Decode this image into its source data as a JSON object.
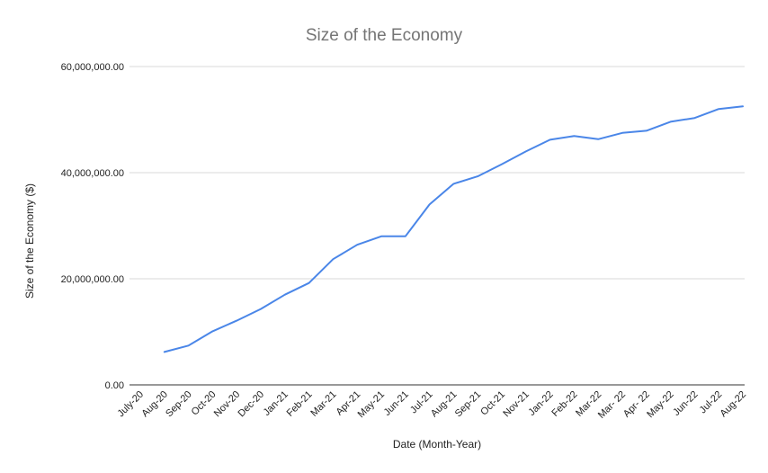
{
  "chart_data": {
    "type": "line",
    "title": "Size of the Economy",
    "xlabel": "Date (Month-Year)",
    "ylabel": "Size of the Economy ($)",
    "ylim": [
      0,
      60000000
    ],
    "yticks": [
      0,
      20000000,
      40000000,
      60000000
    ],
    "ytick_labels": [
      "0.00",
      "20,000,000.00",
      "40,000,000.00",
      "60,000,000.00"
    ],
    "categories": [
      "July-20",
      "Aug-20",
      "Sep-20",
      "Oct-20",
      "Nov-20",
      "Dec-20",
      "Jan-21",
      "Feb-21",
      "Mar-21",
      "Apr-21",
      "May-21",
      "Jun-21",
      "Jul-21",
      "Aug-21",
      "Sep-21",
      "Oct-21",
      "Nov-21",
      "Jan-22",
      "Feb-22",
      "Mar-22",
      "Mar- 22",
      "Apr- 22",
      "May-22",
      "Jun-22",
      "Jul-22",
      "Aug-22"
    ],
    "series": [
      {
        "color": "#4a86e8",
        "values": [
          null,
          6200000,
          7400000,
          10100000,
          12100000,
          14300000,
          17000000,
          19200000,
          23700000,
          26400000,
          28000000,
          28000000,
          34000000,
          37900000,
          39300000,
          41600000,
          44000000,
          46200000,
          46900000,
          46300000,
          47500000,
          47900000,
          49600000,
          50300000,
          52000000,
          52500000
        ]
      }
    ],
    "grid": true,
    "legend": "none"
  }
}
